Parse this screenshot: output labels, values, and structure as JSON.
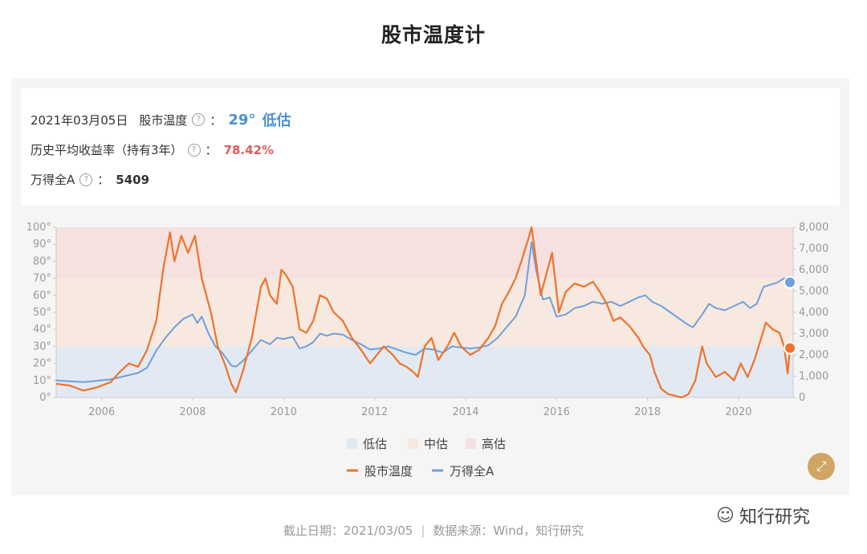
{
  "page_title": "股市温度计",
  "info": {
    "date": "2021年03月05日",
    "temp_label": "股市温度",
    "temp_value": "29°",
    "temp_status": "低估",
    "return_label": "历史平均收益率（持有3年）",
    "return_value": "78.42%",
    "index_label": "万得全A",
    "index_value": "5409",
    "help_glyph": "?",
    "colon": "："
  },
  "footer": {
    "date_text": "截止日期：2021/03/05",
    "separator": "|",
    "source_text": "数据来源：Wind，知行研究"
  },
  "watermark": {
    "icon": "wechat-icon",
    "text": "知行研究"
  },
  "colors": {
    "low_zone": "#e3e9f2",
    "mid_zone": "#f7e9df",
    "high_zone": "#f6e1e0",
    "temperature": "#f0722a",
    "index": "#6f9fdc",
    "accent_gold": "#cfa563"
  },
  "chart_data": {
    "type": "line",
    "x_ticks": [
      2006,
      2008,
      2010,
      2012,
      2014,
      2016,
      2018,
      2020
    ],
    "x_range": [
      2005.0,
      2021.2
    ],
    "y_left": {
      "range": [
        0,
        100
      ],
      "ticks": [
        "0°",
        "10°",
        "20°",
        "30°",
        "40°",
        "50°",
        "60°",
        "70°",
        "80°",
        "90°",
        "100°"
      ]
    },
    "y_right": {
      "range": [
        0,
        8000
      ],
      "ticks": [
        "0",
        "1,000",
        "2,000",
        "3,000",
        "4,000",
        "5,000",
        "6,000",
        "7,000",
        "8,000"
      ]
    },
    "zones": [
      {
        "name": "低估",
        "from": 0,
        "to": 30
      },
      {
        "name": "中估",
        "from": 30,
        "to": 70
      },
      {
        "name": "高估",
        "from": 70,
        "to": 100
      }
    ],
    "legend_zones": [
      "低估",
      "中估",
      "高估"
    ],
    "series": [
      {
        "name": "股市温度",
        "axis": "left",
        "points": [
          [
            2005.0,
            8
          ],
          [
            2005.3,
            7
          ],
          [
            2005.6,
            4
          ],
          [
            2005.9,
            6
          ],
          [
            2006.2,
            9
          ],
          [
            2006.4,
            15
          ],
          [
            2006.6,
            20
          ],
          [
            2006.8,
            18
          ],
          [
            2007.0,
            28
          ],
          [
            2007.2,
            45
          ],
          [
            2007.35,
            75
          ],
          [
            2007.5,
            97
          ],
          [
            2007.6,
            80
          ],
          [
            2007.75,
            95
          ],
          [
            2007.9,
            85
          ],
          [
            2008.05,
            95
          ],
          [
            2008.2,
            70
          ],
          [
            2008.4,
            50
          ],
          [
            2008.55,
            30
          ],
          [
            2008.7,
            20
          ],
          [
            2008.85,
            8
          ],
          [
            2008.95,
            3
          ],
          [
            2009.1,
            15
          ],
          [
            2009.3,
            35
          ],
          [
            2009.5,
            65
          ],
          [
            2009.6,
            70
          ],
          [
            2009.7,
            60
          ],
          [
            2009.85,
            55
          ],
          [
            2009.95,
            75
          ],
          [
            2010.05,
            72
          ],
          [
            2010.2,
            65
          ],
          [
            2010.35,
            40
          ],
          [
            2010.5,
            38
          ],
          [
            2010.65,
            45
          ],
          [
            2010.8,
            60
          ],
          [
            2010.95,
            58
          ],
          [
            2011.1,
            50
          ],
          [
            2011.3,
            45
          ],
          [
            2011.5,
            35
          ],
          [
            2011.7,
            28
          ],
          [
            2011.9,
            20
          ],
          [
            2012.05,
            25
          ],
          [
            2012.2,
            30
          ],
          [
            2012.4,
            25
          ],
          [
            2012.55,
            20
          ],
          [
            2012.7,
            18
          ],
          [
            2012.85,
            15
          ],
          [
            2012.95,
            12
          ],
          [
            2013.1,
            30
          ],
          [
            2013.25,
            35
          ],
          [
            2013.4,
            22
          ],
          [
            2013.6,
            30
          ],
          [
            2013.75,
            38
          ],
          [
            2013.9,
            30
          ],
          [
            2014.1,
            25
          ],
          [
            2014.3,
            28
          ],
          [
            2014.5,
            35
          ],
          [
            2014.65,
            42
          ],
          [
            2014.8,
            55
          ],
          [
            2014.95,
            62
          ],
          [
            2015.1,
            70
          ],
          [
            2015.25,
            82
          ],
          [
            2015.4,
            95
          ],
          [
            2015.45,
            100
          ],
          [
            2015.55,
            80
          ],
          [
            2015.65,
            60
          ],
          [
            2015.8,
            75
          ],
          [
            2015.9,
            85
          ],
          [
            2016.05,
            50
          ],
          [
            2016.2,
            62
          ],
          [
            2016.4,
            67
          ],
          [
            2016.6,
            65
          ],
          [
            2016.8,
            68
          ],
          [
            2016.95,
            62
          ],
          [
            2017.1,
            55
          ],
          [
            2017.25,
            45
          ],
          [
            2017.4,
            47
          ],
          [
            2017.6,
            42
          ],
          [
            2017.8,
            35
          ],
          [
            2017.9,
            30
          ],
          [
            2018.05,
            25
          ],
          [
            2018.15,
            15
          ],
          [
            2018.3,
            5
          ],
          [
            2018.45,
            2
          ],
          [
            2018.6,
            1
          ],
          [
            2018.75,
            0
          ],
          [
            2018.9,
            2
          ],
          [
            2019.05,
            10
          ],
          [
            2019.2,
            30
          ],
          [
            2019.3,
            20
          ],
          [
            2019.5,
            12
          ],
          [
            2019.7,
            15
          ],
          [
            2019.9,
            10
          ],
          [
            2020.05,
            20
          ],
          [
            2020.2,
            12
          ],
          [
            2020.35,
            22
          ],
          [
            2020.5,
            35
          ],
          [
            2020.6,
            44
          ],
          [
            2020.75,
            40
          ],
          [
            2020.9,
            38
          ],
          [
            2021.0,
            30
          ],
          [
            2021.08,
            14
          ],
          [
            2021.13,
            29
          ]
        ]
      },
      {
        "name": "万得全A",
        "axis": "right",
        "points": [
          [
            2005.0,
            800
          ],
          [
            2005.3,
            760
          ],
          [
            2005.6,
            720
          ],
          [
            2005.9,
            780
          ],
          [
            2006.2,
            850
          ],
          [
            2006.5,
            1000
          ],
          [
            2006.8,
            1150
          ],
          [
            2007.0,
            1400
          ],
          [
            2007.2,
            2200
          ],
          [
            2007.4,
            2800
          ],
          [
            2007.6,
            3300
          ],
          [
            2007.8,
            3700
          ],
          [
            2008.0,
            3900
          ],
          [
            2008.1,
            3500
          ],
          [
            2008.2,
            3800
          ],
          [
            2008.35,
            3000
          ],
          [
            2008.5,
            2400
          ],
          [
            2008.65,
            2100
          ],
          [
            2008.85,
            1500
          ],
          [
            2008.95,
            1450
          ],
          [
            2009.1,
            1700
          ],
          [
            2009.3,
            2200
          ],
          [
            2009.5,
            2700
          ],
          [
            2009.7,
            2500
          ],
          [
            2009.85,
            2800
          ],
          [
            2010.0,
            2750
          ],
          [
            2010.2,
            2850
          ],
          [
            2010.35,
            2300
          ],
          [
            2010.5,
            2400
          ],
          [
            2010.65,
            2600
          ],
          [
            2010.8,
            3000
          ],
          [
            2010.95,
            2900
          ],
          [
            2011.1,
            3000
          ],
          [
            2011.3,
            2950
          ],
          [
            2011.5,
            2700
          ],
          [
            2011.7,
            2500
          ],
          [
            2011.9,
            2250
          ],
          [
            2012.1,
            2300
          ],
          [
            2012.3,
            2400
          ],
          [
            2012.5,
            2250
          ],
          [
            2012.7,
            2100
          ],
          [
            2012.9,
            2000
          ],
          [
            2013.1,
            2300
          ],
          [
            2013.3,
            2250
          ],
          [
            2013.5,
            2100
          ],
          [
            2013.7,
            2400
          ],
          [
            2013.9,
            2350
          ],
          [
            2014.1,
            2300
          ],
          [
            2014.3,
            2350
          ],
          [
            2014.5,
            2450
          ],
          [
            2014.7,
            2800
          ],
          [
            2014.9,
            3300
          ],
          [
            2015.1,
            3800
          ],
          [
            2015.3,
            4800
          ],
          [
            2015.45,
            7300
          ],
          [
            2015.55,
            6000
          ],
          [
            2015.7,
            4600
          ],
          [
            2015.85,
            4700
          ],
          [
            2016.0,
            3800
          ],
          [
            2016.2,
            3900
          ],
          [
            2016.4,
            4200
          ],
          [
            2016.6,
            4300
          ],
          [
            2016.8,
            4500
          ],
          [
            2017.0,
            4400
          ],
          [
            2017.2,
            4500
          ],
          [
            2017.4,
            4300
          ],
          [
            2017.6,
            4500
          ],
          [
            2017.8,
            4700
          ],
          [
            2017.95,
            4800
          ],
          [
            2018.1,
            4500
          ],
          [
            2018.3,
            4300
          ],
          [
            2018.5,
            4000
          ],
          [
            2018.7,
            3700
          ],
          [
            2018.9,
            3400
          ],
          [
            2019.0,
            3300
          ],
          [
            2019.2,
            3900
          ],
          [
            2019.35,
            4400
          ],
          [
            2019.5,
            4200
          ],
          [
            2019.7,
            4100
          ],
          [
            2019.9,
            4300
          ],
          [
            2020.1,
            4500
          ],
          [
            2020.25,
            4200
          ],
          [
            2020.4,
            4400
          ],
          [
            2020.55,
            5200
          ],
          [
            2020.7,
            5300
          ],
          [
            2020.85,
            5400
          ],
          [
            2021.0,
            5600
          ],
          [
            2021.13,
            5409
          ]
        ]
      }
    ],
    "end_markers": {
      "temperature": 29,
      "index": 5409
    }
  }
}
